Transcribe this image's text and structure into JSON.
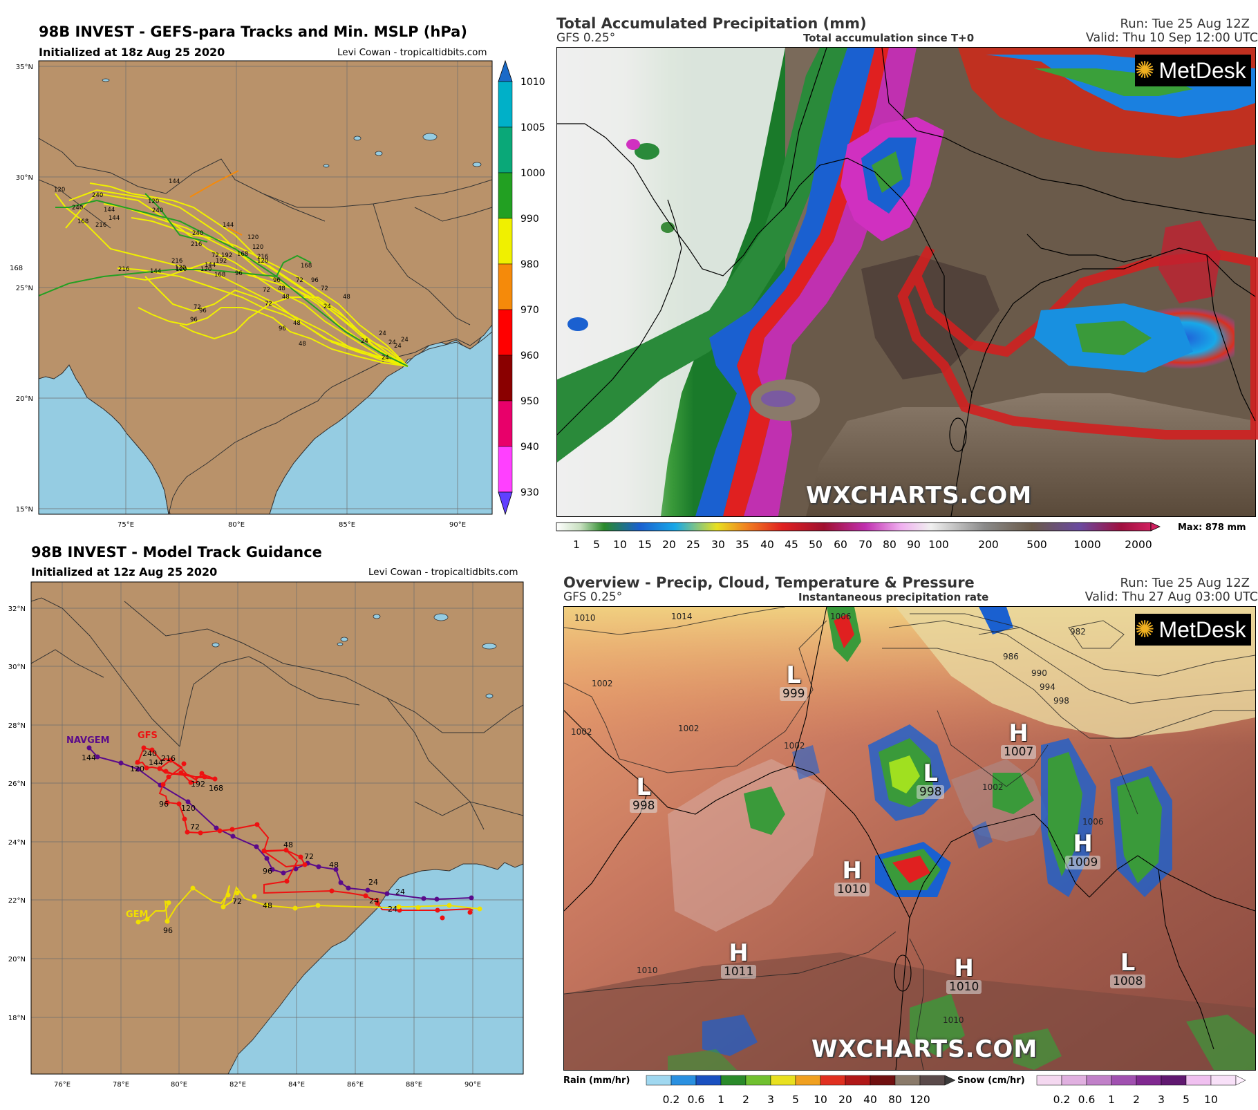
{
  "top_left": {
    "title": "98B INVEST - GEFS-para Tracks and Min. MSLP (hPa)",
    "init": "Initialized at 18z Aug 25 2020",
    "credit": "Levi Cowan - tropicaltidbits.com",
    "lat_labels": [
      "35°N",
      "30°N",
      "25°N",
      "20°N",
      "15°N"
    ],
    "lon_labels": [
      "75°E",
      "80°E",
      "85°E",
      "90°E"
    ],
    "colorbar_labels": [
      "1010",
      "1005",
      "1000",
      "990",
      "980",
      "970",
      "960",
      "950",
      "940",
      "930"
    ],
    "colorbar_colors": [
      "#00b0c8",
      "#0aa878",
      "#22a022",
      "#f0f000",
      "#f58a0a",
      "#ff0000",
      "#8a0000",
      "#e8006a",
      "#ff40ff",
      "#6040ff"
    ],
    "stray_label": "168",
    "hour_labels": [
      "120",
      "240",
      "144",
      "144",
      "120",
      "240",
      "168",
      "216",
      "240",
      "144",
      "120",
      "216",
      "120",
      "144",
      "240",
      "216",
      "168",
      "144",
      "192",
      "120",
      "72",
      "168",
      "120",
      "96",
      "168",
      "216",
      "96",
      "72",
      "48",
      "72",
      "72",
      "48",
      "96",
      "72",
      "48",
      "48",
      "24",
      "24",
      "24",
      "24",
      "24",
      "24",
      "96",
      "96",
      "120",
      "192",
      "216",
      "144",
      "120",
      "24",
      "48",
      "72",
      "96"
    ]
  },
  "top_right": {
    "title": "Total Accumulated Precipitation (mm)",
    "model": "GFS 0.25°",
    "subtitle": "Total accumulation since T+0",
    "run": "Run: Tue 25 Aug 12Z",
    "valid": "Valid: Thu 10 Sep 12:00 UTC",
    "brand": "WXCHARTS.COM",
    "logo": "MetDesk",
    "max_label": "Max: 878 mm",
    "scale_labels": [
      "1",
      "5",
      "10",
      "15",
      "20",
      "25",
      "30",
      "35",
      "40",
      "45",
      "50",
      "60",
      "70",
      "80",
      "90",
      "100",
      "200",
      "500",
      "1000",
      "2000"
    ]
  },
  "bottom_left": {
    "title": "98B INVEST - Model Track Guidance",
    "init": "Initialized at 12z Aug 25 2020",
    "credit": "Levi Cowan - tropicaltidbits.com",
    "lat_labels": [
      "32°N",
      "30°N",
      "28°N",
      "26°N",
      "24°N",
      "22°N",
      "20°N",
      "18°N"
    ],
    "lon_labels": [
      "76°E",
      "78°E",
      "80°E",
      "82°E",
      "84°E",
      "86°E",
      "88°E",
      "90°E"
    ],
    "models": [
      {
        "name": "NAVGEM",
        "color": "#5a0a8a"
      },
      {
        "name": "GFS",
        "color": "#ee1111"
      },
      {
        "name": "GEM",
        "color": "#f0e000"
      }
    ],
    "hour_labels": [
      "144",
      "120",
      "96",
      "72",
      "48",
      "48",
      "24",
      "240",
      "216",
      "144",
      "192",
      "168",
      "120",
      "96",
      "72",
      "48",
      "24",
      "72",
      "96"
    ]
  },
  "bottom_right": {
    "title": "Overview - Precip, Cloud, Temperature & Pressure",
    "model": "GFS 0.25°",
    "subtitle": "Instantaneous precipitation rate",
    "run": "Run: Tue 25 Aug 12Z",
    "valid": "Valid: Thu 27 Aug 03:00 UTC",
    "brand": "WXCHARTS.COM",
    "logo": "MetDesk",
    "pressure_centres": [
      {
        "type": "L",
        "value": "999"
      },
      {
        "type": "H",
        "value": "1007"
      },
      {
        "type": "L",
        "value": "998"
      },
      {
        "type": "L",
        "value": "998"
      },
      {
        "type": "H",
        "value": "1009"
      },
      {
        "type": "H",
        "value": "1010"
      },
      {
        "type": "H",
        "value": "1011"
      },
      {
        "type": "H",
        "value": "1010"
      },
      {
        "type": "L",
        "value": "1008"
      }
    ],
    "isobar_labels": [
      "1010",
      "1014",
      "1006",
      "982",
      "986",
      "990",
      "994",
      "998",
      "1002",
      "1002",
      "1002",
      "1002",
      "1006",
      "1010",
      "1010",
      "1002"
    ],
    "rain_label": "Rain (mm/hr)",
    "rain_scale": [
      "0.2",
      "0.6",
      "1",
      "2",
      "3",
      "5",
      "10",
      "20",
      "40",
      "80",
      "120"
    ],
    "snow_label": "Snow (cm/hr)",
    "snow_scale": [
      "0.2",
      "0.6",
      "1",
      "2",
      "3",
      "5",
      "10"
    ]
  }
}
